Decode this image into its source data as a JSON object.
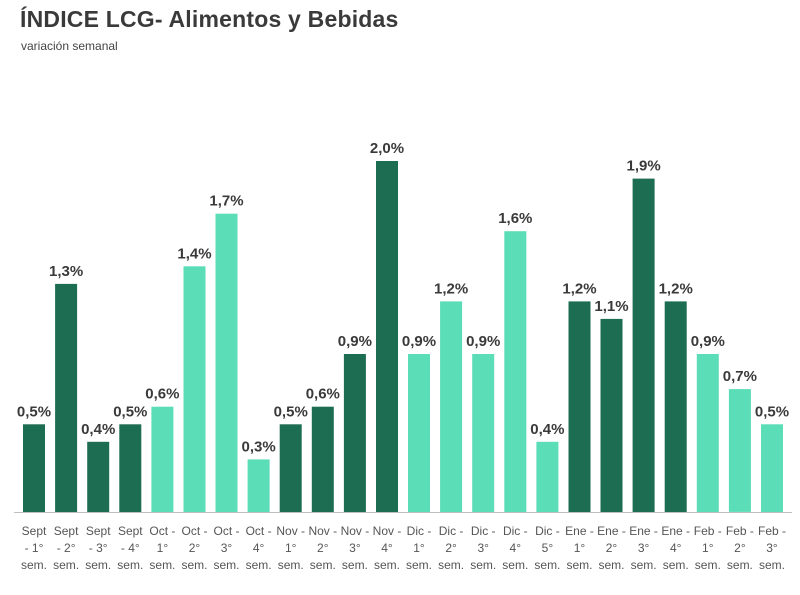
{
  "chart_data": {
    "type": "bar",
    "title": "ÍNDICE LCG- Alimentos y Bebidas",
    "subtitle": "variación semanal",
    "xlabel": "",
    "ylabel": "",
    "ylim": [
      0,
      2.0
    ],
    "grid": false,
    "legend": "none",
    "colors": {
      "dark": "#1d6d52",
      "light": "#5bddb7",
      "axis": "#bfbfbf"
    },
    "categories": [
      [
        "Sept",
        "- 1°",
        "sem."
      ],
      [
        "Sept",
        "- 2°",
        "sem."
      ],
      [
        "Sept",
        "- 3°",
        "sem."
      ],
      [
        "Sept",
        "- 4°",
        "sem."
      ],
      [
        "Oct -",
        "1°",
        "sem."
      ],
      [
        "Oct -",
        "2°",
        "sem."
      ],
      [
        "Oct -",
        "3°",
        "sem."
      ],
      [
        "Oct -",
        "4°",
        "sem."
      ],
      [
        "Nov -",
        "1°",
        "sem."
      ],
      [
        "Nov -",
        "2°",
        "sem."
      ],
      [
        "Nov -",
        "3°",
        "sem."
      ],
      [
        "Nov -",
        "4°",
        "sem."
      ],
      [
        "Dic -",
        "1°",
        "sem."
      ],
      [
        "Dic -",
        "2°",
        "sem."
      ],
      [
        "Dic -",
        "3°",
        "sem."
      ],
      [
        "Dic -",
        "4°",
        "sem."
      ],
      [
        "Dic -",
        "5°",
        "sem."
      ],
      [
        "Ene -",
        "1°",
        "sem."
      ],
      [
        "Ene -",
        "2°",
        "sem."
      ],
      [
        "Ene -",
        "3°",
        "sem."
      ],
      [
        "Ene -",
        "4°",
        "sem."
      ],
      [
        "Feb -",
        "1°",
        "sem."
      ],
      [
        "Feb -",
        "2°",
        "sem."
      ],
      [
        "Feb -",
        "3°",
        "sem."
      ]
    ],
    "values": [
      0.5,
      1.3,
      0.4,
      0.5,
      0.6,
      1.4,
      1.7,
      0.3,
      0.5,
      0.6,
      0.9,
      2.0,
      0.9,
      1.2,
      0.9,
      1.6,
      0.4,
      1.2,
      1.1,
      1.9,
      1.2,
      0.9,
      0.7,
      0.5
    ],
    "labels": [
      "0,5%",
      "1,3%",
      "0,4%",
      "0,5%",
      "0,6%",
      "1,4%",
      "1,7%",
      "0,3%",
      "0,5%",
      "0,6%",
      "0,9%",
      "2,0%",
      "0,9%",
      "1,2%",
      "0,9%",
      "1,6%",
      "0,4%",
      "1,2%",
      "1,1%",
      "1,9%",
      "1,2%",
      "0,9%",
      "0,7%",
      "0,5%"
    ],
    "shades": [
      "dark",
      "dark",
      "dark",
      "dark",
      "light",
      "light",
      "light",
      "light",
      "dark",
      "dark",
      "dark",
      "dark",
      "light",
      "light",
      "light",
      "light",
      "light",
      "dark",
      "dark",
      "dark",
      "dark",
      "light",
      "light",
      "light"
    ]
  }
}
